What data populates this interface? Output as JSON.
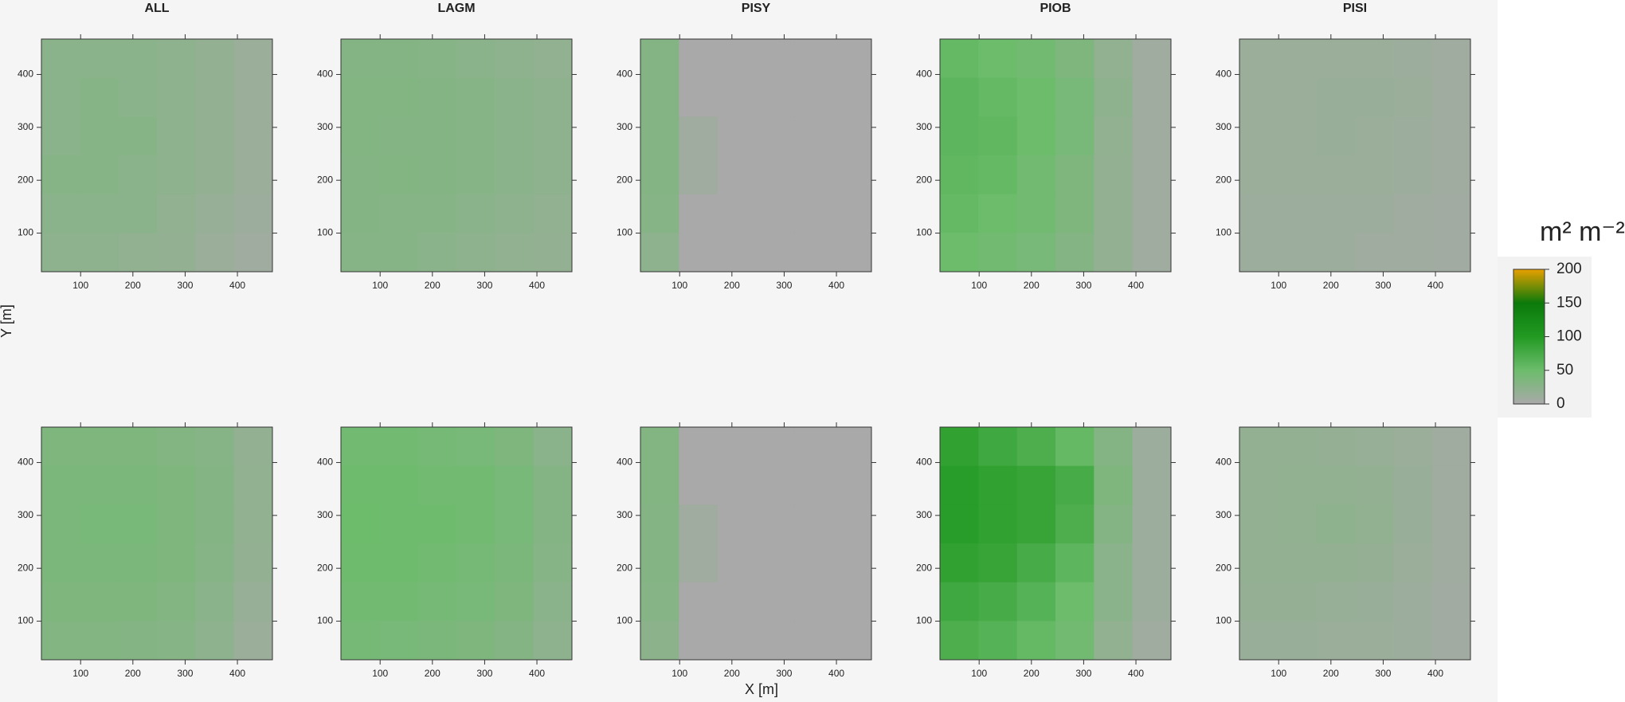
{
  "chart_data": [
    {
      "type": "heatmap",
      "title": "ALL",
      "xlim": [
        25,
        467
      ],
      "ylim": [
        27,
        467
      ],
      "xticks": [
        100,
        200,
        300,
        400
      ],
      "yticks": [
        100,
        200,
        300,
        400
      ],
      "z": [
        [
          25,
          25,
          25,
          22,
          18,
          12
        ],
        [
          25,
          28,
          25,
          22,
          18,
          12
        ],
        [
          25,
          28,
          28,
          22,
          18,
          12
        ],
        [
          28,
          28,
          25,
          22,
          18,
          12
        ],
        [
          25,
          25,
          25,
          20,
          15,
          10
        ],
        [
          22,
          22,
          20,
          18,
          12,
          8
        ]
      ]
    },
    {
      "type": "heatmap",
      "title": "LAGM",
      "xlim": [
        25,
        467
      ],
      "ylim": [
        27,
        467
      ],
      "xticks": [
        100,
        200,
        300,
        400
      ],
      "yticks": [
        100,
        200,
        300,
        400
      ],
      "z": [
        [
          30,
          30,
          28,
          25,
          22,
          20
        ],
        [
          32,
          32,
          30,
          28,
          25,
          22
        ],
        [
          32,
          30,
          30,
          28,
          25,
          22
        ],
        [
          30,
          32,
          30,
          28,
          25,
          22
        ],
        [
          30,
          28,
          28,
          25,
          22,
          20
        ],
        [
          28,
          28,
          25,
          22,
          20,
          18
        ]
      ]
    },
    {
      "type": "heatmap",
      "title": "PISY",
      "xlim": [
        25,
        467
      ],
      "ylim": [
        27,
        467
      ],
      "xticks": [
        100,
        200,
        300,
        400
      ],
      "yticks": [
        100,
        200,
        300,
        400
      ],
      "z": [
        [
          30,
          0,
          0,
          0,
          0,
          0
        ],
        [
          30,
          0,
          0,
          0,
          0,
          0
        ],
        [
          30,
          8,
          0,
          0,
          0,
          0
        ],
        [
          30,
          8,
          0,
          0,
          0,
          0
        ],
        [
          28,
          0,
          0,
          0,
          0,
          0
        ],
        [
          22,
          0,
          0,
          0,
          0,
          0
        ]
      ]
    },
    {
      "type": "heatmap",
      "title": "PIOB",
      "xlim": [
        25,
        467
      ],
      "ylim": [
        27,
        467
      ],
      "xticks": [
        100,
        200,
        300,
        400
      ],
      "yticks": [
        100,
        200,
        300,
        400
      ],
      "z": [
        [
          55,
          50,
          45,
          35,
          20,
          8
        ],
        [
          60,
          55,
          50,
          40,
          22,
          8
        ],
        [
          60,
          58,
          50,
          40,
          20,
          8
        ],
        [
          58,
          55,
          45,
          35,
          18,
          8
        ],
        [
          55,
          50,
          45,
          35,
          18,
          8
        ],
        [
          50,
          45,
          40,
          30,
          18,
          8
        ]
      ]
    },
    {
      "type": "heatmap",
      "title": "PISI",
      "xlim": [
        25,
        467
      ],
      "ylim": [
        27,
        467
      ],
      "xticks": [
        100,
        200,
        300,
        400
      ],
      "yticks": [
        100,
        200,
        300,
        400
      ],
      "z": [
        [
          12,
          12,
          12,
          12,
          10,
          8
        ],
        [
          12,
          12,
          14,
          14,
          12,
          8
        ],
        [
          12,
          12,
          14,
          12,
          10,
          8
        ],
        [
          12,
          12,
          12,
          12,
          10,
          8
        ],
        [
          10,
          10,
          10,
          10,
          8,
          6
        ],
        [
          10,
          10,
          10,
          8,
          8,
          6
        ]
      ]
    },
    {
      "type": "heatmap",
      "xlim": [
        25,
        467
      ],
      "ylim": [
        27,
        467
      ],
      "xticks": [
        100,
        200,
        300,
        400
      ],
      "yticks": [
        100,
        200,
        300,
        400
      ],
      "z": [
        [
          35,
          35,
          35,
          32,
          28,
          18
        ],
        [
          38,
          38,
          38,
          35,
          30,
          20
        ],
        [
          38,
          40,
          40,
          35,
          30,
          20
        ],
        [
          38,
          38,
          38,
          35,
          28,
          18
        ],
        [
          35,
          35,
          35,
          32,
          25,
          15
        ],
        [
          32,
          32,
          30,
          28,
          22,
          12
        ]
      ]
    },
    {
      "type": "heatmap",
      "xlim": [
        25,
        467
      ],
      "ylim": [
        27,
        467
      ],
      "xticks": [
        100,
        200,
        300,
        400
      ],
      "yticks": [
        100,
        200,
        300,
        400
      ],
      "z": [
        [
          45,
          45,
          42,
          40,
          35,
          25
        ],
        [
          48,
          48,
          45,
          45,
          40,
          30
        ],
        [
          50,
          48,
          48,
          45,
          40,
          30
        ],
        [
          48,
          48,
          45,
          42,
          38,
          28
        ],
        [
          45,
          45,
          42,
          40,
          35,
          25
        ],
        [
          42,
          40,
          38,
          35,
          30,
          22
        ]
      ]
    },
    {
      "type": "heatmap",
      "xlim": [
        25,
        467
      ],
      "ylim": [
        27,
        467
      ],
      "xticks": [
        100,
        200,
        300,
        400
      ],
      "yticks": [
        100,
        200,
        300,
        400
      ],
      "z": [
        [
          32,
          0,
          0,
          0,
          0,
          0
        ],
        [
          32,
          0,
          0,
          0,
          0,
          0
        ],
        [
          30,
          8,
          0,
          0,
          0,
          0
        ],
        [
          30,
          8,
          0,
          0,
          0,
          0
        ],
        [
          28,
          0,
          0,
          0,
          0,
          0
        ],
        [
          24,
          0,
          0,
          0,
          0,
          0
        ]
      ]
    },
    {
      "type": "heatmap",
      "xlim": [
        25,
        467
      ],
      "ylim": [
        27,
        467
      ],
      "xticks": [
        100,
        200,
        300,
        400
      ],
      "yticks": [
        100,
        200,
        300,
        400
      ],
      "z": [
        [
          90,
          80,
          70,
          55,
          30,
          10
        ],
        [
          95,
          90,
          85,
          75,
          35,
          10
        ],
        [
          95,
          90,
          85,
          70,
          30,
          10
        ],
        [
          90,
          85,
          75,
          60,
          25,
          10
        ],
        [
          80,
          75,
          65,
          50,
          25,
          10
        ],
        [
          70,
          65,
          55,
          45,
          20,
          8
        ]
      ]
    },
    {
      "type": "heatmap",
      "xlim": [
        25,
        467
      ],
      "ylim": [
        27,
        467
      ],
      "xticks": [
        100,
        200,
        300,
        400
      ],
      "yticks": [
        100,
        200,
        300,
        400
      ],
      "z": [
        [
          18,
          18,
          16,
          15,
          12,
          8
        ],
        [
          18,
          20,
          20,
          18,
          14,
          8
        ],
        [
          18,
          20,
          22,
          20,
          14,
          8
        ],
        [
          18,
          18,
          18,
          16,
          12,
          8
        ],
        [
          16,
          16,
          15,
          14,
          10,
          6
        ],
        [
          14,
          14,
          12,
          12,
          10,
          6
        ]
      ]
    }
  ],
  "x_label": "X [m]",
  "y_label": "Y [m]",
  "colorbar": {
    "title": "m² m⁻²",
    "lim": [
      0,
      200
    ],
    "ticks": [
      0,
      50,
      100,
      150,
      200
    ],
    "colors": [
      "#a9a9a9",
      "#6cbc6c",
      "#229a22",
      "#0b7a0b",
      "#e8a000"
    ]
  }
}
